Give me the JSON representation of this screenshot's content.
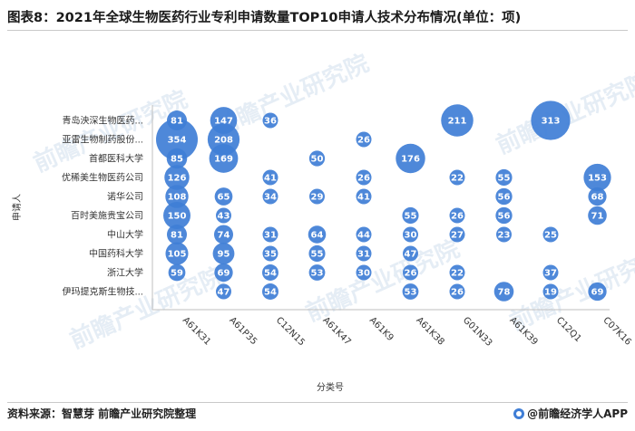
{
  "title": "图表8：2021年全球生物医药行业专利申请数量TOP10申请人技术分布情况(单位：项)",
  "source": "资料来源：智慧芽 前瞻产业研究院整理",
  "brand": "@前瞻经济学人APP",
  "watermark": "前瞻产业研究院",
  "chart_data": {
    "type": "scatter",
    "title": "图表8：2021年全球生物医药行业专利申请数量TOP10申请人技术分布情况(单位：项)",
    "xlabel": "分类号",
    "ylabel": "申请人",
    "grid": false,
    "bubble_color": "#3f7ed6",
    "x_categories": [
      "A61K31",
      "A61P35",
      "C12N15",
      "A61K47",
      "A61K9",
      "A61K38",
      "G01N33",
      "A61K39",
      "C12Q1",
      "C07K16"
    ],
    "y_categories": [
      "青岛泱深生物医药...",
      "亚雷生物制药股份...",
      "首都医科大学",
      "优稀美生物医药公司",
      "诺华公司",
      "百时美施贵宝公司",
      "中山大学",
      "中国药科大学",
      "浙江大学",
      "伊玛提克斯生物技..."
    ],
    "points": [
      {
        "applicant": "青岛泱深生物医药...",
        "class": "A61K31",
        "value": 81
      },
      {
        "applicant": "青岛泱深生物医药...",
        "class": "A61P35",
        "value": 147
      },
      {
        "applicant": "青岛泱深生物医药...",
        "class": "C12N15",
        "value": 36
      },
      {
        "applicant": "青岛泱深生物医药...",
        "class": "G01N33",
        "value": 211
      },
      {
        "applicant": "青岛泱深生物医药...",
        "class": "C12Q1",
        "value": 313
      },
      {
        "applicant": "亚雷生物制药股份...",
        "class": "A61K31",
        "value": 354
      },
      {
        "applicant": "亚雷生物制药股份...",
        "class": "A61P35",
        "value": 208
      },
      {
        "applicant": "亚雷生物制药股份...",
        "class": "A61K9",
        "value": 26
      },
      {
        "applicant": "首都医科大学",
        "class": "A61K31",
        "value": 85
      },
      {
        "applicant": "首都医科大学",
        "class": "A61P35",
        "value": 169
      },
      {
        "applicant": "首都医科大学",
        "class": "A61K47",
        "value": 50
      },
      {
        "applicant": "首都医科大学",
        "class": "A61K38",
        "value": 176
      },
      {
        "applicant": "优稀美生物医药公司",
        "class": "A61K31",
        "value": 126
      },
      {
        "applicant": "优稀美生物医药公司",
        "class": "C12N15",
        "value": 41
      },
      {
        "applicant": "优稀美生物医药公司",
        "class": "A61K9",
        "value": 26
      },
      {
        "applicant": "优稀美生物医药公司",
        "class": "G01N33",
        "value": 22
      },
      {
        "applicant": "优稀美生物医药公司",
        "class": "A61K39",
        "value": 55
      },
      {
        "applicant": "优稀美生物医药公司",
        "class": "C07K16",
        "value": 153
      },
      {
        "applicant": "诺华公司",
        "class": "A61K31",
        "value": 108
      },
      {
        "applicant": "诺华公司",
        "class": "A61P35",
        "value": 65
      },
      {
        "applicant": "诺华公司",
        "class": "C12N15",
        "value": 34
      },
      {
        "applicant": "诺华公司",
        "class": "A61K47",
        "value": 29
      },
      {
        "applicant": "诺华公司",
        "class": "A61K9",
        "value": 41
      },
      {
        "applicant": "诺华公司",
        "class": "A61K39",
        "value": 56
      },
      {
        "applicant": "诺华公司",
        "class": "C07K16",
        "value": 68
      },
      {
        "applicant": "百时美施贵宝公司",
        "class": "A61K31",
        "value": 150
      },
      {
        "applicant": "百时美施贵宝公司",
        "class": "A61P35",
        "value": 43
      },
      {
        "applicant": "百时美施贵宝公司",
        "class": "A61K38",
        "value": 55
      },
      {
        "applicant": "百时美施贵宝公司",
        "class": "G01N33",
        "value": 26
      },
      {
        "applicant": "百时美施贵宝公司",
        "class": "A61K39",
        "value": 56
      },
      {
        "applicant": "百时美施贵宝公司",
        "class": "C07K16",
        "value": 71
      },
      {
        "applicant": "中山大学",
        "class": "A61K31",
        "value": 81
      },
      {
        "applicant": "中山大学",
        "class": "A61P35",
        "value": 74
      },
      {
        "applicant": "中山大学",
        "class": "C12N15",
        "value": 31
      },
      {
        "applicant": "中山大学",
        "class": "A61K47",
        "value": 64
      },
      {
        "applicant": "中山大学",
        "class": "A61K9",
        "value": 44
      },
      {
        "applicant": "中山大学",
        "class": "A61K38",
        "value": 30
      },
      {
        "applicant": "中山大学",
        "class": "G01N33",
        "value": 27
      },
      {
        "applicant": "中山大学",
        "class": "A61K39",
        "value": 23
      },
      {
        "applicant": "中山大学",
        "class": "C12Q1",
        "value": 25
      },
      {
        "applicant": "中国药科大学",
        "class": "A61K31",
        "value": 105
      },
      {
        "applicant": "中国药科大学",
        "class": "A61P35",
        "value": 95
      },
      {
        "applicant": "中国药科大学",
        "class": "C12N15",
        "value": 35
      },
      {
        "applicant": "中国药科大学",
        "class": "A61K47",
        "value": 55
      },
      {
        "applicant": "中国药科大学",
        "class": "A61K9",
        "value": 31
      },
      {
        "applicant": "中国药科大学",
        "class": "A61K38",
        "value": 47
      },
      {
        "applicant": "浙江大学",
        "class": "A61K31",
        "value": 59
      },
      {
        "applicant": "浙江大学",
        "class": "A61P35",
        "value": 69
      },
      {
        "applicant": "浙江大学",
        "class": "C12N15",
        "value": 54
      },
      {
        "applicant": "浙江大学",
        "class": "A61K47",
        "value": 53
      },
      {
        "applicant": "浙江大学",
        "class": "A61K9",
        "value": 30
      },
      {
        "applicant": "浙江大学",
        "class": "A61K38",
        "value": 26
      },
      {
        "applicant": "浙江大学",
        "class": "G01N33",
        "value": 22
      },
      {
        "applicant": "浙江大学",
        "class": "C12Q1",
        "value": 37
      },
      {
        "applicant": "伊玛提克斯生物技...",
        "class": "A61P35",
        "value": 47
      },
      {
        "applicant": "伊玛提克斯生物技...",
        "class": "C12N15",
        "value": 54
      },
      {
        "applicant": "伊玛提克斯生物技...",
        "class": "A61K38",
        "value": 53
      },
      {
        "applicant": "伊玛提克斯生物技...",
        "class": "G01N33",
        "value": 26
      },
      {
        "applicant": "伊玛提克斯生物技...",
        "class": "A61K39",
        "value": 78
      },
      {
        "applicant": "伊玛提克斯生物技...",
        "class": "C12Q1",
        "value": 19
      },
      {
        "applicant": "伊玛提克斯生物技...",
        "class": "C07K16",
        "value": 69
      }
    ]
  }
}
